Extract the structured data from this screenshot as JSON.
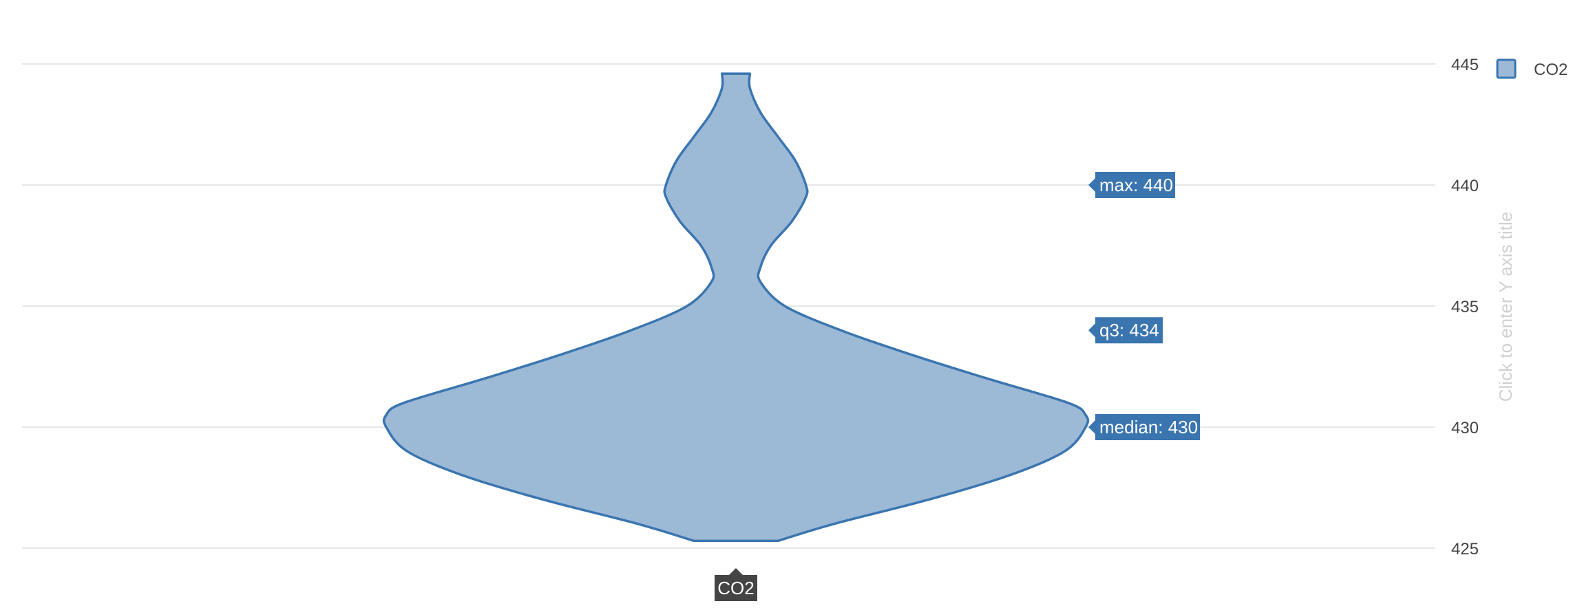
{
  "chart_data": {
    "type": "violin",
    "series": [
      {
        "name": "CO2",
        "category": "CO2",
        "y_min": 425.3,
        "y_max": 444.6,
        "max": 440,
        "q3": 434,
        "median": 430,
        "density": [
          [
            425.3,
            0.12
          ],
          [
            426.0,
            0.28
          ],
          [
            427.0,
            0.55
          ],
          [
            428.0,
            0.78
          ],
          [
            429.0,
            0.94
          ],
          [
            430.0,
            1.0
          ],
          [
            430.5,
            1.0
          ],
          [
            431.0,
            0.95
          ],
          [
            432.0,
            0.72
          ],
          [
            433.0,
            0.5
          ],
          [
            434.0,
            0.3
          ],
          [
            435.0,
            0.14
          ],
          [
            436.0,
            0.07
          ],
          [
            436.6,
            0.07
          ],
          [
            437.5,
            0.1
          ],
          [
            438.5,
            0.16
          ],
          [
            439.5,
            0.2
          ],
          [
            440.0,
            0.2
          ],
          [
            441.0,
            0.17
          ],
          [
            442.0,
            0.12
          ],
          [
            443.0,
            0.07
          ],
          [
            444.0,
            0.04
          ],
          [
            444.6,
            0.04
          ]
        ],
        "fill_color": "#9cb9d6",
        "line_color": "#3a75b0"
      }
    ],
    "y_ticks": [
      "425",
      "430",
      "435",
      "440",
      "445"
    ],
    "ylim": [
      424.8,
      446.6
    ],
    "grid": true,
    "y_axis_side": "right",
    "legend": {
      "placement": "top-right",
      "entries": [
        "CO2"
      ]
    },
    "hover_labels": [
      {
        "label": "max: 440",
        "value": 440
      },
      {
        "label": "q3: 434",
        "value": 434
      },
      {
        "label": "median: 430",
        "value": 430
      }
    ],
    "x_hover_label": "CO2"
  },
  "ui": {
    "y_axis_title_placeholder": "Click to enter Y axis title"
  },
  "colors": {
    "accent": "#3a75b0",
    "hover_bg": "#3a75b0",
    "x_hover_bg": "#444444",
    "grid": "#e6e6e6"
  }
}
